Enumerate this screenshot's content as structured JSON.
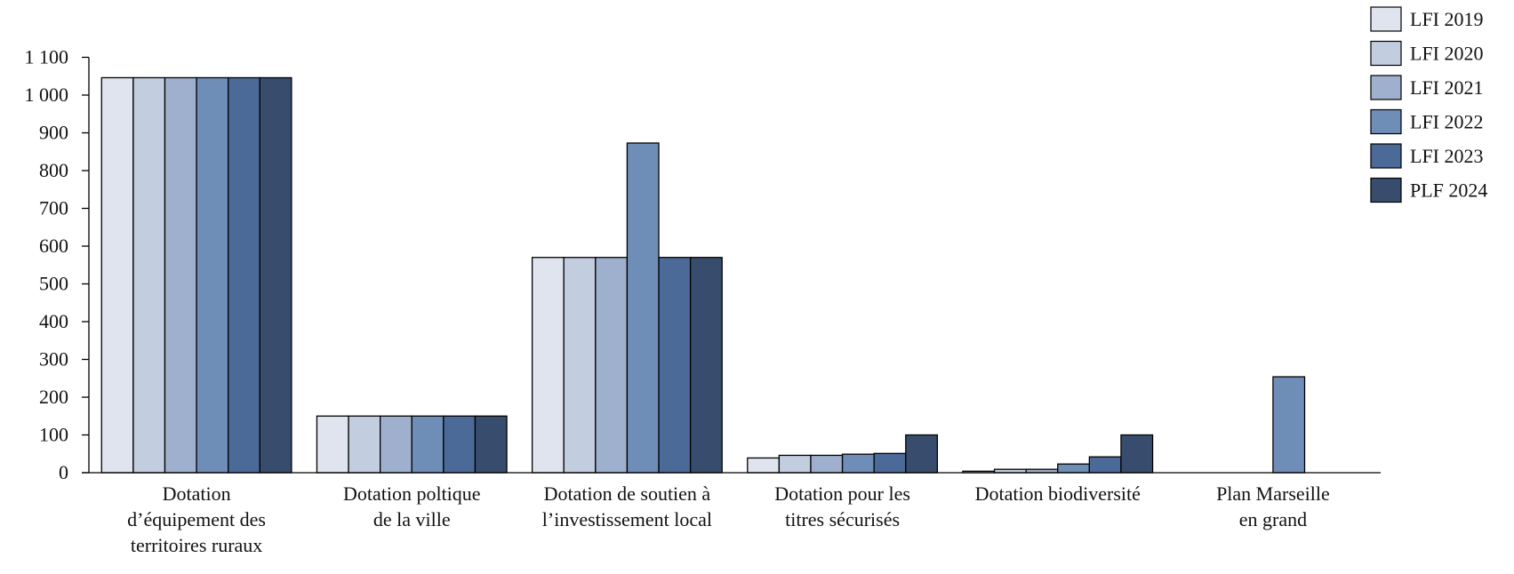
{
  "chart_data": {
    "type": "bar",
    "title": "",
    "xlabel": "",
    "ylabel": "",
    "ylim": [
      0,
      1100
    ],
    "yticks": [
      0,
      100,
      200,
      300,
      400,
      500,
      600,
      700,
      800,
      900,
      1000,
      1100
    ],
    "ytick_labels": [
      "0",
      "100",
      "200",
      "300",
      "400",
      "500",
      "600",
      "700",
      "800",
      "900",
      "1 000",
      "1 100"
    ],
    "grid": false,
    "legend_position": "top-right",
    "categories": [
      [
        "Dotation",
        "d’équipement des",
        "territoires ruraux"
      ],
      [
        "Dotation poltique",
        "de la ville"
      ],
      [
        "Dotation de soutien à",
        "l’investissement local"
      ],
      [
        "Dotation pour les",
        "titres sécurisés"
      ],
      [
        "Dotation biodiversité"
      ],
      [
        "Plan Marseille",
        "en grand"
      ]
    ],
    "series": [
      {
        "name": "LFI 2019",
        "color": "#dfe4ee",
        "values": [
          1046,
          150,
          570,
          39,
          4,
          0
        ]
      },
      {
        "name": "LFI 2020",
        "color": "#c3cde0",
        "values": [
          1046,
          150,
          570,
          46,
          9,
          0
        ]
      },
      {
        "name": "LFI 2021",
        "color": "#9eb0cd",
        "values": [
          1046,
          150,
          570,
          46,
          9,
          0
        ]
      },
      {
        "name": "LFI 2022",
        "color": "#6e8eb8",
        "values": [
          1046,
          150,
          873,
          49,
          23,
          254
        ]
      },
      {
        "name": "LFI 2023",
        "color": "#4b6a98",
        "values": [
          1046,
          150,
          570,
          51,
          42,
          0
        ]
      },
      {
        "name": "PLF 2024",
        "color": "#384d6e",
        "values": [
          1046,
          150,
          570,
          100,
          100,
          0
        ]
      }
    ]
  }
}
